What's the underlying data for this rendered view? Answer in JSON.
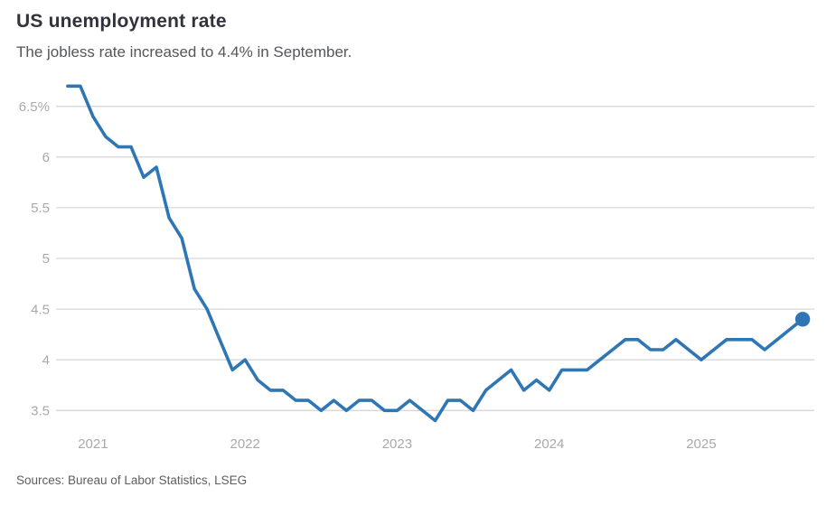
{
  "chart_data": {
    "type": "line",
    "title": "US unemployment rate",
    "subtitle": "The jobless rate increased to 4.4% in September.",
    "source": "Sources: Bureau of Labor Statistics, LSEG",
    "unit": "percent",
    "frequency": "monthly",
    "x_start": "Nov 2020",
    "x_end": "Sep 2025",
    "values": [
      6.7,
      6.7,
      6.4,
      6.2,
      6.1,
      6.1,
      5.8,
      5.9,
      5.4,
      5.2,
      4.7,
      4.5,
      4.2,
      3.9,
      4.0,
      3.8,
      3.7,
      3.7,
      3.6,
      3.6,
      3.5,
      3.6,
      3.5,
      3.6,
      3.6,
      3.5,
      3.5,
      3.6,
      3.5,
      3.4,
      3.6,
      3.6,
      3.5,
      3.7,
      3.8,
      3.9,
      3.7,
      3.8,
      3.7,
      3.9,
      3.9,
      3.9,
      4.0,
      4.1,
      4.2,
      4.2,
      4.1,
      4.1,
      4.2,
      4.1,
      4.0,
      4.1,
      4.2,
      4.2,
      4.2,
      4.1,
      4.2,
      4.3,
      4.4
    ],
    "x_tick_labels": [
      "2021",
      "2022",
      "2023",
      "2024",
      "2025"
    ],
    "x_tick_month_offsets": [
      2,
      14,
      26,
      38,
      50
    ],
    "y_ticks": [
      {
        "value": 6.5,
        "label": "6.5%"
      },
      {
        "value": 6.0,
        "label": "6"
      },
      {
        "value": 5.5,
        "label": "5.5"
      },
      {
        "value": 5.0,
        "label": "5"
      },
      {
        "value": 4.5,
        "label": "4.5"
      },
      {
        "value": 4.0,
        "label": "4"
      },
      {
        "value": 3.5,
        "label": "3.5"
      }
    ],
    "ylim": [
      3.3,
      6.8
    ],
    "grid": "horizontal-only",
    "legend": "none",
    "endpoint_dot": {
      "value": 4.4,
      "period": "Sep 2025"
    },
    "colors": {
      "line": "#2E76B4",
      "grid": "#D8D8D8",
      "axis_label": "#A7A9AC",
      "title": "#32323C",
      "subtitle": "#53565A",
      "source": "#5B5E62",
      "background": "#FFFFFF"
    }
  }
}
